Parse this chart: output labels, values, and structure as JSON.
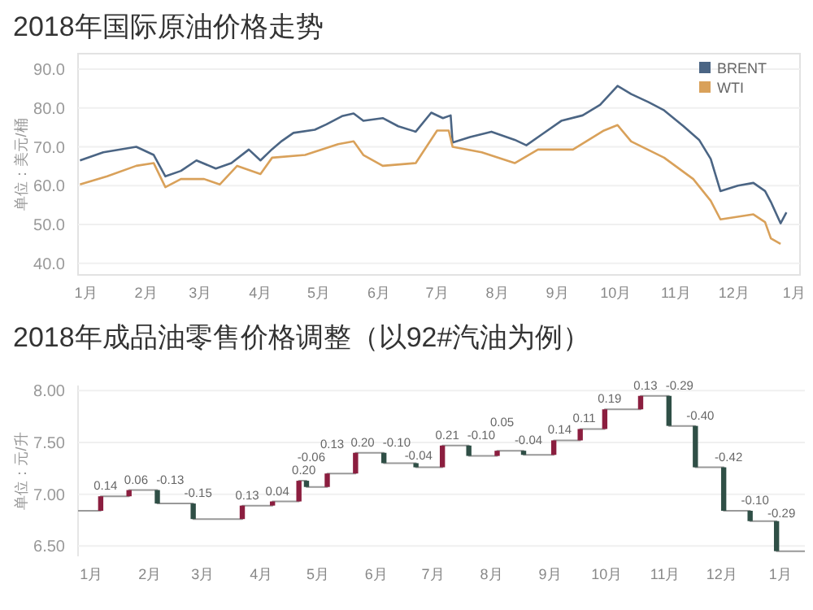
{
  "chart_data": [
    {
      "type": "line",
      "title": "2018年国际原油价格走势",
      "ylabel": "单位：美元/桶",
      "xlim": [
        "2017-12-28",
        "2019-01-04"
      ],
      "xticks": [
        {
          "value": "2018-01-01",
          "label": "1月"
        },
        {
          "value": "2018-02-01",
          "label": "2月"
        },
        {
          "value": "2018-03-01",
          "label": "3月"
        },
        {
          "value": "2018-04-01",
          "label": "4月"
        },
        {
          "value": "2018-05-01",
          "label": "5月"
        },
        {
          "value": "2018-06-01",
          "label": "6月"
        },
        {
          "value": "2018-07-01",
          "label": "7月"
        },
        {
          "value": "2018-08-01",
          "label": "8月"
        },
        {
          "value": "2018-09-01",
          "label": "9月"
        },
        {
          "value": "2018-10-01",
          "label": "10月"
        },
        {
          "value": "2018-11-01",
          "label": "11月"
        },
        {
          "value": "2018-12-01",
          "label": "12月"
        },
        {
          "value": "2019-01-01",
          "label": "1月"
        }
      ],
      "ylim": [
        37,
        94
      ],
      "yticks": [
        {
          "value": 40,
          "label": "40.0"
        },
        {
          "value": 50,
          "label": "50.0"
        },
        {
          "value": 60,
          "label": "60.0"
        },
        {
          "value": 70,
          "label": "70.0"
        },
        {
          "value": 80,
          "label": "80.0"
        },
        {
          "value": 90,
          "label": "90.0"
        }
      ],
      "grid": "y",
      "legend": "top right",
      "series": [
        {
          "name": "BRENT",
          "color": "#4b6584",
          "x": [
            "2017-12-29",
            "2018-01-10",
            "2018-01-27",
            "2018-02-05",
            "2018-02-11",
            "2018-02-19",
            "2018-02-27",
            "2018-03-09",
            "2018-03-17",
            "2018-03-26",
            "2018-04-01",
            "2018-04-07",
            "2018-04-12",
            "2018-04-18",
            "2018-04-29",
            "2018-05-05",
            "2018-05-13",
            "2018-05-19",
            "2018-05-24",
            "2018-06-03",
            "2018-06-11",
            "2018-06-20",
            "2018-06-28",
            "2018-07-04",
            "2018-07-08",
            "2018-07-09",
            "2018-07-18",
            "2018-07-29",
            "2018-08-10",
            "2018-08-16",
            "2018-08-24",
            "2018-09-03",
            "2018-09-14",
            "2018-09-23",
            "2018-10-02",
            "2018-10-09",
            "2018-10-18",
            "2018-10-26",
            "2018-11-05",
            "2018-11-13",
            "2018-11-19",
            "2018-11-24",
            "2018-12-03",
            "2018-12-11",
            "2018-12-17",
            "2018-12-20",
            "2018-12-25",
            "2018-12-28"
          ],
          "values": [
            66.5,
            68.6,
            70.0,
            67.9,
            62.4,
            63.8,
            66.5,
            64.4,
            65.8,
            69.3,
            66.5,
            69.4,
            71.5,
            73.6,
            74.4,
            75.8,
            77.9,
            78.6,
            76.7,
            77.4,
            75.3,
            73.9,
            78.8,
            77.4,
            78.1,
            71.1,
            72.5,
            73.9,
            71.8,
            70.4,
            73.2,
            76.7,
            78.1,
            80.8,
            85.7,
            83.6,
            81.5,
            79.4,
            75.3,
            71.8,
            66.9,
            58.6,
            60.0,
            60.7,
            58.6,
            55.8,
            50.3,
            53.1
          ]
        },
        {
          "name": "WTI",
          "color": "#d9a15a",
          "x": [
            "2017-12-29",
            "2018-01-12",
            "2018-01-27",
            "2018-02-05",
            "2018-02-11",
            "2018-02-19",
            "2018-03-03",
            "2018-03-11",
            "2018-03-20",
            "2018-04-01",
            "2018-04-07",
            "2018-04-24",
            "2018-05-11",
            "2018-05-19",
            "2018-05-24",
            "2018-06-03",
            "2018-06-20",
            "2018-07-01",
            "2018-07-07",
            "2018-07-09",
            "2018-07-24",
            "2018-08-10",
            "2018-08-22",
            "2018-09-09",
            "2018-09-25",
            "2018-10-02",
            "2018-10-09",
            "2018-10-26",
            "2018-11-10",
            "2018-11-19",
            "2018-11-24",
            "2018-12-11",
            "2018-12-17",
            "2018-12-20",
            "2018-12-25"
          ],
          "values": [
            60.3,
            62.4,
            65.1,
            65.8,
            59.6,
            61.7,
            61.7,
            60.3,
            65.1,
            63.0,
            67.2,
            67.9,
            70.7,
            71.4,
            67.9,
            65.1,
            65.8,
            74.2,
            74.2,
            70.0,
            68.6,
            65.8,
            69.3,
            69.3,
            74.2,
            75.6,
            71.4,
            67.2,
            61.7,
            56.1,
            51.3,
            52.6,
            50.6,
            46.4,
            45.0
          ]
        }
      ]
    },
    {
      "type": "bar",
      "title": "2018年成品油零售价格调整（以92#汽油为例）",
      "ylabel": "单位：元/升",
      "xlim": [
        "2017-12-25",
        "2019-01-14"
      ],
      "xticks": [
        {
          "value": "2018-01-01",
          "label": "1月"
        },
        {
          "value": "2018-02-01",
          "label": "2月"
        },
        {
          "value": "2018-03-01",
          "label": "3月"
        },
        {
          "value": "2018-04-01",
          "label": "4月"
        },
        {
          "value": "2018-05-01",
          "label": "5月"
        },
        {
          "value": "2018-06-01",
          "label": "6月"
        },
        {
          "value": "2018-07-01",
          "label": "7月"
        },
        {
          "value": "2018-08-01",
          "label": "8月"
        },
        {
          "value": "2018-09-01",
          "label": "9月"
        },
        {
          "value": "2018-10-01",
          "label": "10月"
        },
        {
          "value": "2018-11-01",
          "label": "11月"
        },
        {
          "value": "2018-12-01",
          "label": "12月"
        },
        {
          "value": "2019-01-01",
          "label": "1月"
        }
      ],
      "ylim": [
        6.4,
        8.05
      ],
      "yticks": [
        {
          "value": 6.5,
          "label": "6.50"
        },
        {
          "value": 7,
          "label": "7.00"
        },
        {
          "value": 7.5,
          "label": "7.50"
        },
        {
          "value": 8,
          "label": "8.00"
        }
      ],
      "grid": "y",
      "x": [
        "2018-01-06",
        "2018-01-21",
        "2018-02-05",
        "2018-02-24",
        "2018-03-22",
        "2018-04-07",
        "2018-04-21",
        "2018-04-25",
        "2018-05-06",
        "2018-05-21",
        "2018-06-05",
        "2018-06-22",
        "2018-07-06",
        "2018-07-20",
        "2018-08-04",
        "2018-08-18",
        "2018-09-03",
        "2018-09-17",
        "2018-09-30",
        "2018-10-19",
        "2018-11-03",
        "2018-11-17",
        "2018-12-02",
        "2018-12-16",
        "2018-12-30"
      ],
      "values": [
        0.14,
        0.06,
        -0.13,
        -0.15,
        0.13,
        0.04,
        0.2,
        -0.06,
        0.13,
        0.2,
        -0.1,
        -0.04,
        0.21,
        -0.1,
        0.05,
        -0.04,
        0.14,
        0.11,
        0.19,
        0.13,
        -0.29,
        -0.4,
        -0.42,
        -0.1,
        -0.29
      ],
      "value_labels": [
        "0.14",
        "0.06",
        "-0.13",
        "-0.15",
        "0.13",
        "0.04",
        "0.20",
        "-0.06",
        "0.13",
        "0.20",
        "-0.10",
        "-0.04",
        "0.21",
        "-0.10",
        "0.05",
        "-0.04",
        "0.14",
        "0.11",
        "0.19",
        "0.13",
        "-0.29",
        "-0.40",
        "-0.42",
        "-0.10",
        "-0.29"
      ],
      "base": [
        6.84,
        6.98,
        7.04,
        6.91,
        6.76,
        6.89,
        6.93,
        7.13,
        7.07,
        7.2,
        7.4,
        7.3,
        7.26,
        7.47,
        7.37,
        7.42,
        7.38,
        7.52,
        7.63,
        7.82,
        7.95,
        7.66,
        7.26,
        6.84,
        6.74
      ],
      "colors": [
        "#8b1e3f",
        "#8b1e3f",
        "#2f4f46",
        "#2f4f46",
        "#8b1e3f",
        "#8b1e3f",
        "#8b1e3f",
        "#2f4f46",
        "#8b1e3f",
        "#8b1e3f",
        "#2f4f46",
        "#2f4f46",
        "#8b1e3f",
        "#2f4f46",
        "#8b1e3f",
        "#2f4f46",
        "#8b1e3f",
        "#8b1e3f",
        "#8b1e3f",
        "#8b1e3f",
        "#2f4f46",
        "#2f4f46",
        "#2f4f46",
        "#2f4f46",
        "#2f4f46"
      ],
      "series": [
        {
          "type": "step",
          "color": "#999999",
          "x": [
            "2017-12-25",
            "2018-01-06",
            "2018-01-21",
            "2018-02-05",
            "2018-02-24",
            "2018-03-22",
            "2018-04-07",
            "2018-04-21",
            "2018-04-25",
            "2018-05-06",
            "2018-05-21",
            "2018-06-05",
            "2018-06-22",
            "2018-07-06",
            "2018-07-20",
            "2018-08-04",
            "2018-08-18",
            "2018-09-03",
            "2018-09-17",
            "2018-09-30",
            "2018-10-19",
            "2018-11-03",
            "2018-11-17",
            "2018-12-02",
            "2018-12-16",
            "2018-12-30",
            "2019-01-14"
          ],
          "values": [
            6.84,
            6.98,
            7.04,
            6.91,
            6.76,
            6.89,
            6.93,
            7.13,
            7.07,
            7.2,
            7.4,
            7.3,
            7.26,
            7.47,
            7.37,
            7.42,
            7.38,
            7.52,
            7.63,
            7.82,
            7.95,
            7.66,
            7.26,
            6.84,
            6.74,
            6.45,
            6.45
          ]
        }
      ]
    }
  ]
}
